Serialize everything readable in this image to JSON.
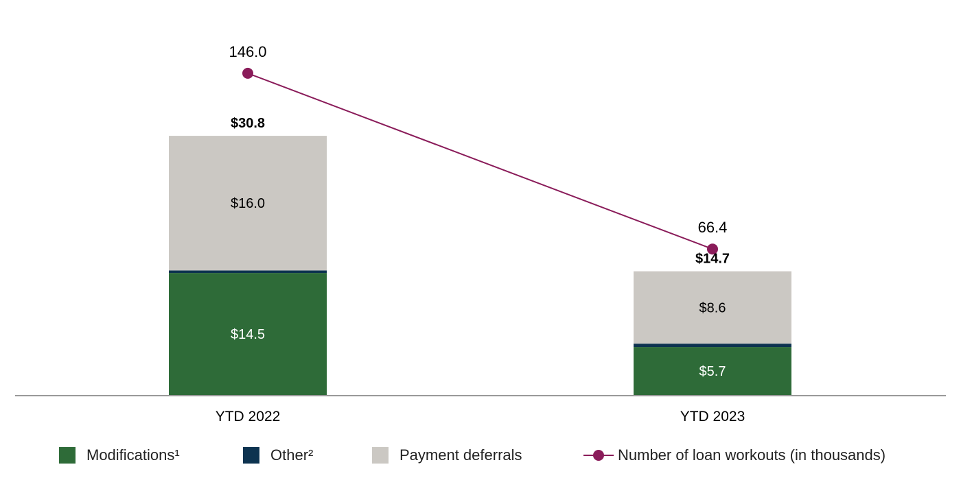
{
  "chart_data": {
    "type": "bar",
    "stacked": true,
    "categories": [
      "YTD 2022",
      "YTD 2023"
    ],
    "series": [
      {
        "name": "Modifications¹",
        "values": [
          14.5,
          5.7
        ],
        "labels": [
          "$14.5",
          "$5.7"
        ],
        "color": "#2e6b38",
        "label_color": "#ffffff"
      },
      {
        "name": "Other²",
        "values": [
          0.3,
          0.4
        ],
        "labels": [
          "",
          ""
        ],
        "color": "#0d3350",
        "label_color": "#ffffff"
      },
      {
        "name": "Payment deferrals",
        "values": [
          16.0,
          8.6
        ],
        "labels": [
          "$16.0",
          "$8.6"
        ],
        "color": "#cbc8c3",
        "label_color": "#000000"
      }
    ],
    "totals": [
      30.8,
      14.7
    ],
    "total_labels": [
      "$30.8",
      "$14.7"
    ],
    "line_series": {
      "name": "Number of loan workouts (in thousands)",
      "values": [
        146.0,
        66.4
      ],
      "labels": [
        "146.0",
        "66.4"
      ],
      "color": "#8a1c5a"
    },
    "legend_position": "bottom",
    "axis_color": "#999999"
  }
}
